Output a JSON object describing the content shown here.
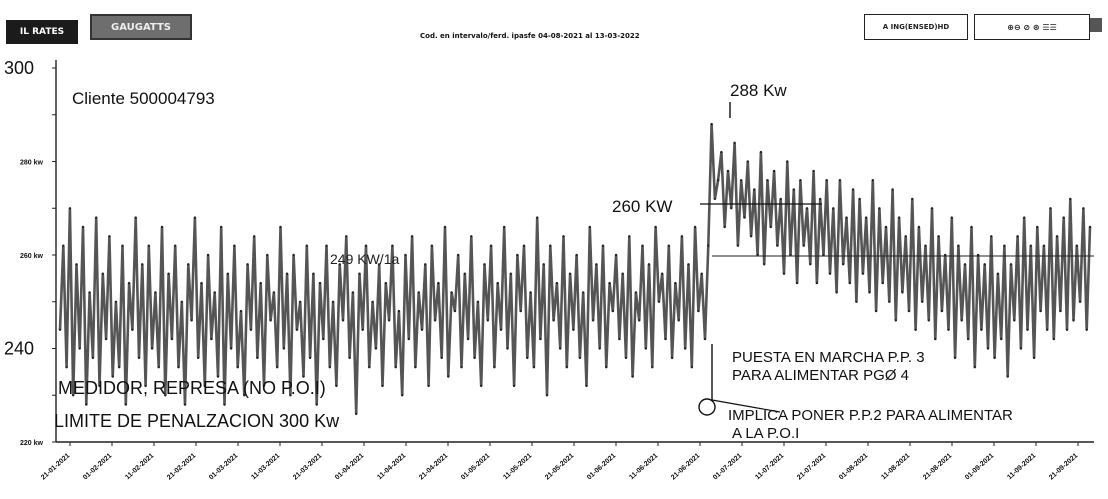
{
  "toolbar": {
    "left_button": "IL RATES",
    "right_button": "GAUGATTS",
    "period": "Cod. en intervalo/ferd. ipasfe 04-08-2021 al 13-03-2022",
    "export_button": "A ING(ENSED)HD",
    "tools_button": "⊕⊖ ⊘ ⊛ ☰☰"
  },
  "chart_data": {
    "type": "line",
    "title": "Cliente 500004793",
    "xlabel": "",
    "ylabel": "",
    "ylim": [
      220,
      300
    ],
    "y_ticks": [
      220,
      230,
      240,
      250,
      260,
      270,
      280,
      290,
      300
    ],
    "y_tick_labels": [
      "220 kw",
      "",
      "240",
      "",
      "260 kw",
      "",
      "280 kw",
      "",
      "300"
    ],
    "x_ticks": [
      "21-01-2021",
      "01-02-2021",
      "11-02-2021",
      "21-02-2021",
      "01-03-2021",
      "11-03-2021",
      "21-03-2021",
      "01-04-2021",
      "11-04-2021",
      "21-04-2021",
      "01-05-2021",
      "11-05-2021",
      "21-05-2021",
      "01-06-2021",
      "11-06-2021",
      "21-06-2021",
      "01-07-2021",
      "11-07-2021",
      "21-07-2021",
      "01-08-2021",
      "11-08-2021",
      "21-08-2021",
      "01-09-2021",
      "11-09-2021",
      "21-09-2021"
    ],
    "series": [
      {
        "values": [
          244,
          262,
          236,
          270,
          230,
          258,
          240,
          266,
          228,
          252,
          238,
          268,
          232,
          256,
          242,
          264,
          234,
          250,
          236,
          262,
          228,
          254,
          244,
          268,
          238,
          258,
          232,
          262,
          240,
          252,
          236,
          266,
          230,
          256,
          242,
          262,
          236,
          250,
          228,
          258,
          246,
          268,
          238,
          254,
          232,
          260,
          242,
          252,
          234,
          266,
          228,
          256,
          240,
          262,
          236,
          248,
          230,
          258,
          244,
          264,
          238,
          254,
          232,
          260,
          246,
          252,
          236,
          266,
          240,
          256,
          230,
          260,
          244,
          250,
          234,
          262,
          238,
          256,
          228,
          254,
          242,
          262,
          236,
          250,
          232,
          258,
          246,
          264,
          238,
          252,
          226,
          256,
          244,
          262,
          236,
          250,
          240,
          258,
          232,
          254,
          246,
          262,
          236,
          248,
          230,
          260,
          242,
          264,
          236,
          252,
          244,
          258,
          232,
          262,
          246,
          254,
          238,
          266,
          234,
          252,
          248,
          260,
          236,
          256,
          242,
          264,
          238,
          250,
          232,
          258,
          246,
          262,
          236,
          254,
          244,
          266,
          240,
          256,
          232,
          260,
          248,
          262,
          238,
          252,
          236,
          268,
          242,
          258,
          230,
          262,
          246,
          254,
          240,
          264,
          236,
          256,
          244,
          260,
          238,
          252,
          232,
          266,
          246,
          258,
          240,
          262,
          236,
          254,
          248,
          260,
          242,
          256,
          238,
          264,
          234,
          252,
          246,
          262,
          240,
          258,
          236,
          266,
          250,
          256,
          242,
          262,
          238,
          254,
          246,
          264,
          240,
          258,
          236,
          266,
          248,
          256,
          242,
          262,
          288,
          272,
          276,
          282,
          266,
          278,
          270,
          284,
          262,
          276,
          268,
          280,
          264,
          274,
          260,
          282,
          258,
          276,
          266,
          278,
          262,
          272,
          256,
          280,
          260,
          274,
          254,
          276,
          262,
          270,
          258,
          278,
          254,
          272,
          260,
          276,
          256,
          270,
          252,
          276,
          258,
          268,
          254,
          274,
          250,
          272,
          256,
          268,
          252,
          276,
          248,
          270,
          254,
          266,
          250,
          274,
          246,
          268,
          252,
          264,
          248,
          272,
          244,
          266,
          250,
          262,
          246,
          270,
          242,
          264,
          248,
          260,
          244,
          268,
          238,
          262,
          246,
          258,
          242,
          266,
          236,
          260,
          244,
          258,
          240,
          264,
          238,
          256,
          242,
          262,
          234,
          258,
          246,
          264,
          240,
          268,
          244,
          262,
          238,
          266,
          248,
          262,
          244,
          270,
          242,
          264,
          248,
          268,
          244,
          272,
          246,
          262,
          250,
          270,
          244,
          266
        ]
      }
    ],
    "annotations": {
      "client": "Cliente 500004793",
      "peak_label": "288 Kw",
      "level_260": "260 KW",
      "level_249": "249 KW/1a",
      "meter_line1": "MEDIDOR, REPRESA (NO P.O.I)",
      "meter_line2": "LIMITE DE PENALZACION 300 Kw",
      "pump_line1": "PUESTA EN MARCHA P.P. 3",
      "pump_line2": "PARA ALIMENTAR PGØ 4",
      "implies_line1": "IMPLICA PONER P.P.2 PARA ALIMENTAR",
      "implies_line2": "A LA P.O.I"
    },
    "grid": false,
    "legend": "none",
    "colors": {
      "series": "#555555",
      "ink": "#111111"
    }
  }
}
